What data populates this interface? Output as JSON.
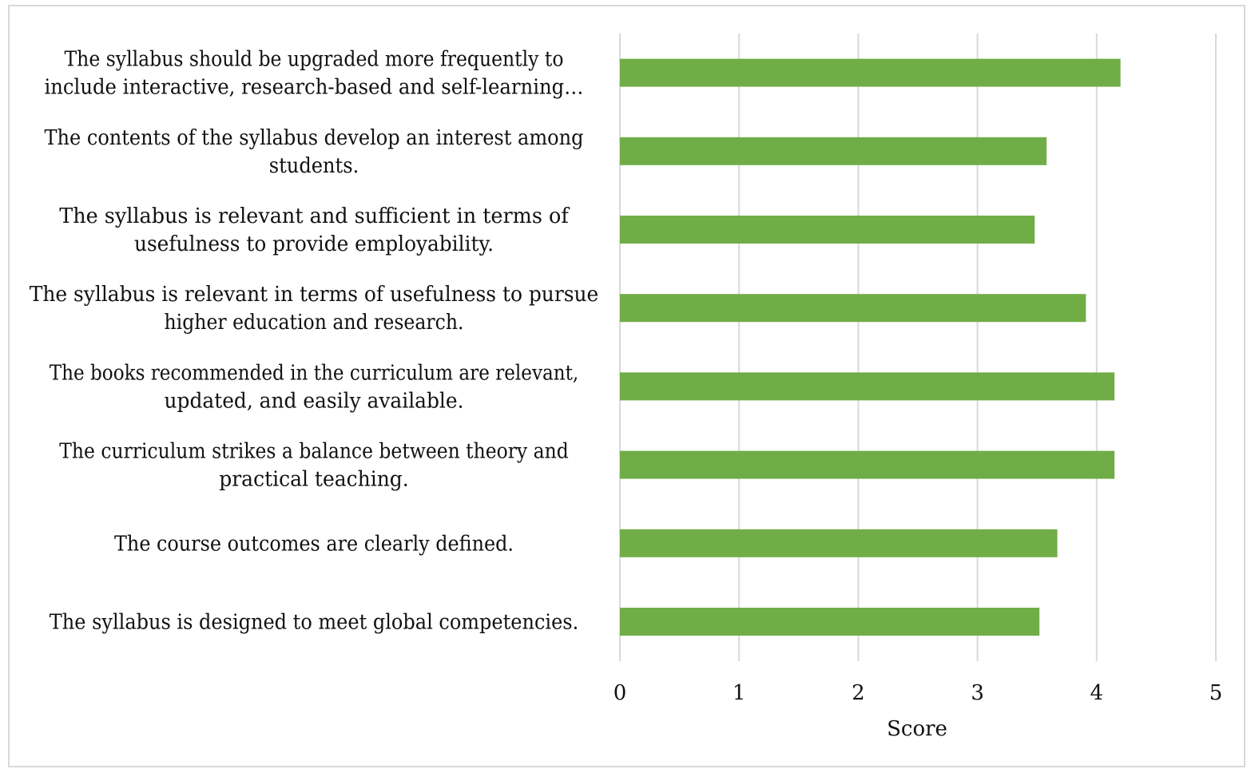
{
  "chart_data": {
    "type": "bar",
    "orientation": "horizontal",
    "categories": [
      [
        "The syllabus should be upgraded more frequently to",
        "include interactive, research-based and self-learning…"
      ],
      [
        "The contents of the syllabus develop an interest among",
        "students."
      ],
      [
        "The syllabus is relevant and sufficient in terms of",
        "usefulness to provide employability."
      ],
      [
        "The syllabus is relevant in terms of usefulness to pursue",
        "higher education and research."
      ],
      [
        "The books recommended in the curriculum are relevant,",
        "updated, and easily available."
      ],
      [
        "The curriculum strikes a balance between theory and",
        "practical teaching."
      ],
      [
        "The course outcomes are clearly defined."
      ],
      [
        "The syllabus is designed to meet global competencies."
      ]
    ],
    "values": [
      4.2,
      3.58,
      3.48,
      3.91,
      4.15,
      4.15,
      3.67,
      3.52
    ],
    "xlabel": "Score",
    "xlim": [
      0,
      5
    ],
    "xticks": [
      "0",
      "1",
      "2",
      "3",
      "4",
      "5"
    ],
    "grid": true,
    "bar_color": "#70ad47",
    "grid_color": "#d9d9d9"
  }
}
